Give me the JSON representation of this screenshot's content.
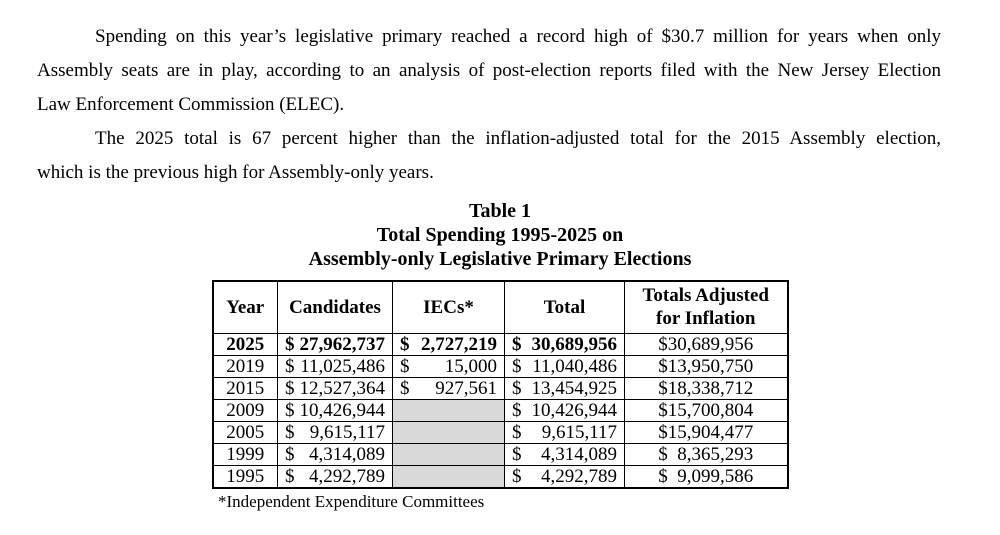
{
  "document": {
    "paragraphs": [
      {
        "lines": [
          "Spending on this year’s legislative primary reached a record high of $30.7 million for years when only",
          "Assembly seats are in play, according to an analysis of post-election reports filed with the New Jersey Election",
          "Law Enforcement Commission (ELEC)."
        ]
      },
      {
        "lines": [
          "The 2025 total is 67 percent higher than the inflation-adjusted total for the 2015 Assembly election,",
          "which is the previous high for Assembly-only years."
        ]
      }
    ],
    "table": {
      "title_lines": [
        "Table 1",
        "Total Spending 1995-2025 on",
        "Assembly-only Legislative Primary Elections"
      ],
      "columns": [
        {
          "lines": [
            "Year"
          ]
        },
        {
          "lines": [
            "Candidates"
          ]
        },
        {
          "lines": [
            "IECs*"
          ]
        },
        {
          "lines": [
            "Total"
          ]
        },
        {
          "lines": [
            "Totals Adjusted",
            "for Inflation"
          ]
        }
      ],
      "rows": [
        {
          "year": "2025",
          "candidates": "$27,962,737",
          "iecs": "$2,727,219",
          "total": "$30,689,956",
          "adjusted": "$30,689,956",
          "emphasis": true
        },
        {
          "year": "2019",
          "candidates": "$11,025,486",
          "iecs": "$ 15,000",
          "total": "$11,040,486",
          "adjusted": "$13,950,750",
          "emphasis": false
        },
        {
          "year": "2015",
          "candidates": "$12,527,364",
          "iecs": "$ 927,561",
          "total": "$13,454,925",
          "adjusted": "$18,338,712",
          "emphasis": false
        },
        {
          "year": "2009",
          "candidates": "$10,426,944",
          "iecs": "",
          "total": "$10,426,944",
          "adjusted": "$15,700,804",
          "emphasis": false
        },
        {
          "year": "2005",
          "candidates": "$ 9,615,117",
          "iecs": "",
          "total": "$ 9,615,117",
          "adjusted": "$15,904,477",
          "emphasis": false
        },
        {
          "year": "1999",
          "candidates": "$ 4,314,089",
          "iecs": "",
          "total": "$ 4,314,089",
          "adjusted": "$ 8,365,293",
          "emphasis": false
        },
        {
          "year": "1995",
          "candidates": "$ 4,292,789",
          "iecs": "",
          "total": "$ 4,292,789",
          "adjusted": "$ 9,099,586",
          "emphasis": false
        }
      ],
      "footnote": "*Independent Expenditure Committees"
    },
    "colors": {
      "text": "#000000",
      "border": "#000000",
      "shaded_cell": "#d9d9d9"
    }
  }
}
